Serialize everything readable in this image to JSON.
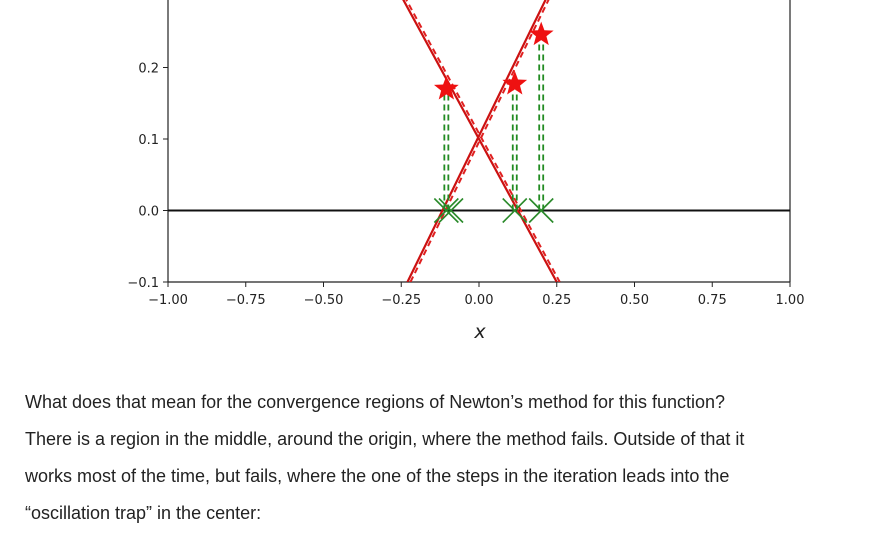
{
  "chart_data": {
    "type": "line",
    "title": "",
    "xlabel": "x",
    "ylabel": "",
    "xlim": [
      -1.0,
      1.0
    ],
    "ylim": [
      -0.1,
      0.3
    ],
    "x_ticks": [
      "−1.00",
      "−0.75",
      "−0.50",
      "−0.25",
      "0.00",
      "0.25",
      "0.50",
      "0.75",
      "1.00"
    ],
    "x_tick_values": [
      -1.0,
      -0.75,
      -0.5,
      -0.25,
      0.0,
      0.25,
      0.5,
      0.75,
      1.0
    ],
    "y_ticks": [
      "−0.1",
      "0.0",
      "0.1",
      "0.2"
    ],
    "y_tick_values": [
      -0.1,
      0.0,
      0.1,
      0.2
    ],
    "horizontal_line_y": 0.0,
    "tangent_lines": [
      {
        "points": [
          [
            -0.23,
            -0.1
          ],
          [
            0.22,
            0.3
          ]
        ],
        "color": "#cc1111"
      },
      {
        "points": [
          [
            -0.25,
            0.3
          ],
          [
            0.25,
            -0.1
          ]
        ],
        "color": "#cc1111"
      }
    ],
    "function_points": [
      {
        "x": -0.105,
        "y": 0.17
      },
      {
        "x": 0.115,
        "y": 0.177
      },
      {
        "x": 0.2,
        "y": 0.246
      }
    ],
    "roots": [
      -0.105,
      -0.09,
      0.115,
      0.2
    ],
    "marker_colors": {
      "star": "#ee1111",
      "cross": "#2a8a2a",
      "dash": "#228b22"
    }
  },
  "paragraph": {
    "lines": [
      "What does that mean for the convergence regions of Newton’s method for this function?",
      "There is a region in the middle, around the origin, where the method fails. Outside of that it",
      "works most of the time, but fails, where the one of the steps in the iteration leads into the",
      "“oscillation trap” in the center:"
    ]
  }
}
